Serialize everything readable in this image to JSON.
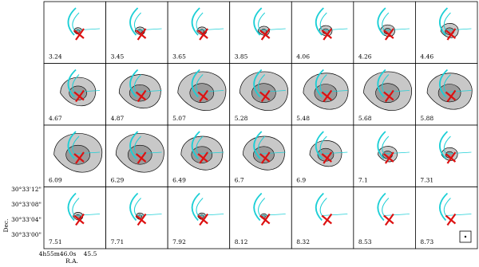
{
  "figure": {
    "panels": [
      "3.24",
      "3.45",
      "3.65",
      "3.85",
      "4.06",
      "4.26",
      "4.46",
      "4.67",
      "4.87",
      "5.07",
      "5.28",
      "5.48",
      "5.68",
      "5.88",
      "6.09",
      "6.29",
      "6.49",
      "6.7",
      "6.9",
      "7.1",
      "7.31",
      "7.51",
      "7.71",
      "7.92",
      "8.12",
      "8.32",
      "8.53",
      "8.73"
    ],
    "y_axis_label": "Dec.",
    "y_ticks": [
      "30°33'12\"",
      "30°33'08\"",
      "30°33'04\"",
      "30°33'00\""
    ],
    "x_axis_label": "R.A.",
    "x_ticks": [
      "4h55m46.0s",
      "45.5"
    ]
  }
}
